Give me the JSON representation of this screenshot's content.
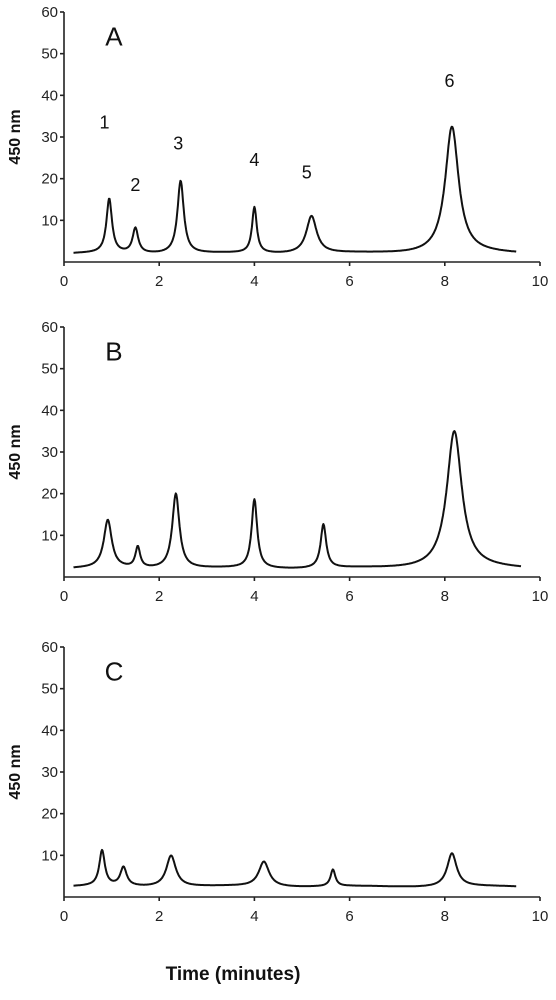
{
  "figure": {
    "xlabel": "Time (minutes)"
  },
  "chart_data": [
    {
      "type": "line",
      "panel": "A",
      "ylabel": "450 nm",
      "xlim": [
        0,
        10
      ],
      "ylim": [
        0,
        60
      ],
      "xticks": [
        0,
        2,
        4,
        6,
        8,
        10
      ],
      "yticks": [
        10,
        20,
        30,
        40,
        50,
        60
      ],
      "peak_labels": [
        {
          "text": "1",
          "x": 0.85,
          "y": 32
        },
        {
          "text": "2",
          "x": 1.5,
          "y": 17
        },
        {
          "text": "3",
          "x": 2.4,
          "y": 27
        },
        {
          "text": "4",
          "x": 4.0,
          "y": 23
        },
        {
          "text": "5",
          "x": 5.1,
          "y": 20
        },
        {
          "text": "6",
          "x": 8.1,
          "y": 42
        }
      ],
      "baseline": 2,
      "x_end": 9.5,
      "peaks": [
        {
          "x": 0.95,
          "y": 15,
          "w": 0.07
        },
        {
          "x": 1.5,
          "y": 8,
          "w": 0.07
        },
        {
          "x": 2.45,
          "y": 19.5,
          "w": 0.08
        },
        {
          "x": 4.0,
          "y": 13,
          "w": 0.06
        },
        {
          "x": 5.2,
          "y": 11,
          "w": 0.13
        },
        {
          "x": 8.15,
          "y": 32.5,
          "w": 0.17
        }
      ]
    },
    {
      "type": "line",
      "panel": "B",
      "ylabel": "450 nm",
      "xlim": [
        0,
        10
      ],
      "ylim": [
        0,
        60
      ],
      "xticks": [
        0,
        2,
        4,
        6,
        8,
        10
      ],
      "yticks": [
        10,
        20,
        30,
        40,
        50,
        60
      ],
      "peak_labels": [],
      "baseline": 2,
      "x_end": 9.6,
      "peaks": [
        {
          "x": 0.92,
          "y": 13.5,
          "w": 0.1
        },
        {
          "x": 1.55,
          "y": 7,
          "w": 0.06
        },
        {
          "x": 2.35,
          "y": 20,
          "w": 0.09
        },
        {
          "x": 4.0,
          "y": 18.5,
          "w": 0.07
        },
        {
          "x": 5.45,
          "y": 12.5,
          "w": 0.07
        },
        {
          "x": 8.2,
          "y": 35,
          "w": 0.19
        }
      ]
    },
    {
      "type": "line",
      "panel": "C",
      "ylabel": "450 nm",
      "xlim": [
        0,
        10
      ],
      "ylim": [
        0,
        60
      ],
      "xticks": [
        0,
        2,
        4,
        6,
        8,
        10
      ],
      "yticks": [
        10,
        20,
        30,
        40,
        50,
        60
      ],
      "peak_labels": [],
      "baseline": 2.5,
      "x_end": 9.5,
      "peaks": [
        {
          "x": 0.8,
          "y": 11,
          "w": 0.07
        },
        {
          "x": 1.25,
          "y": 7,
          "w": 0.08
        },
        {
          "x": 2.25,
          "y": 10,
          "w": 0.12
        },
        {
          "x": 4.2,
          "y": 8.5,
          "w": 0.13
        },
        {
          "x": 5.65,
          "y": 6.5,
          "w": 0.06
        },
        {
          "x": 8.15,
          "y": 10.5,
          "w": 0.12
        }
      ]
    }
  ]
}
